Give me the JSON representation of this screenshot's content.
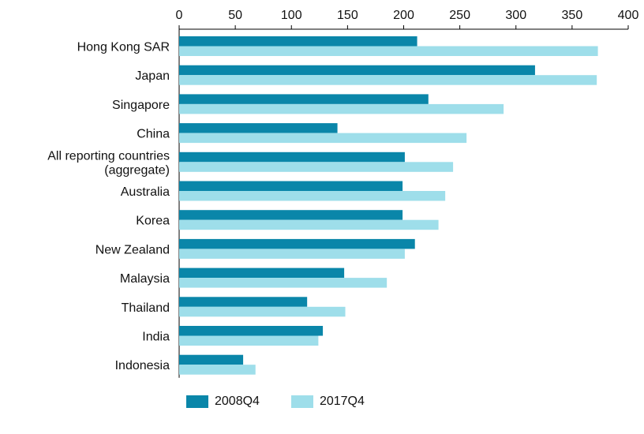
{
  "chart_data": {
    "type": "bar",
    "orientation": "horizontal",
    "categories": [
      "Hong Kong SAR",
      "Japan",
      "Singapore",
      "China",
      "All reporting countries (aggregate)",
      "Australia",
      "Korea",
      "New Zealand",
      "Malaysia",
      "Thailand",
      "India",
      "Indonesia"
    ],
    "series": [
      {
        "name": "2008Q4",
        "color": "#0a86a9",
        "values": [
          212,
          317,
          222,
          141,
          201,
          199,
          199,
          210,
          147,
          114,
          128,
          57
        ]
      },
      {
        "name": "2017Q4",
        "color": "#9edeea",
        "values": [
          373,
          372,
          289,
          256,
          244,
          237,
          231,
          201,
          185,
          148,
          124,
          68
        ]
      }
    ],
    "xlim": [
      0,
      400
    ],
    "xticks": [
      "0",
      "50",
      "100",
      "150",
      "200",
      "250",
      "300",
      "350",
      "400"
    ],
    "xaxis_position": "top",
    "grid": false,
    "legend_position": "bottom-left"
  }
}
